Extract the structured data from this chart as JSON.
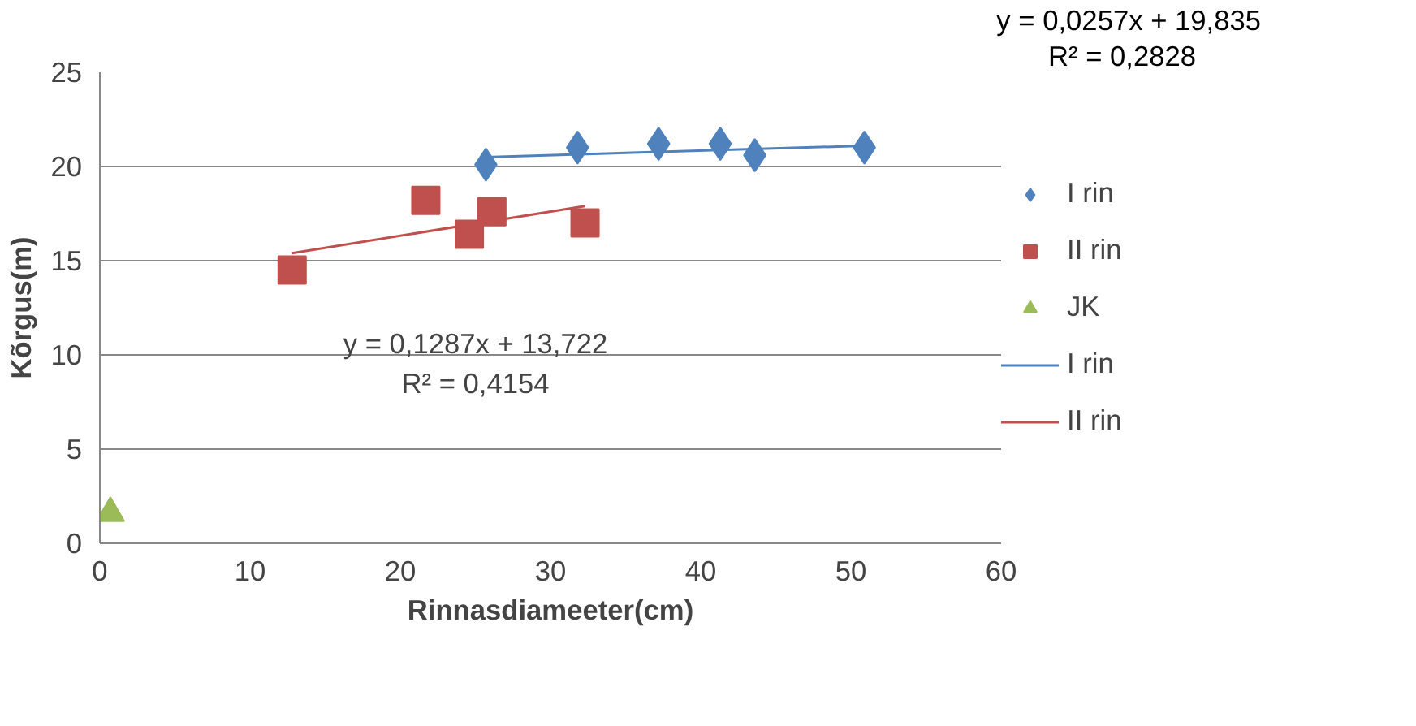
{
  "chart_data": {
    "type": "scatter",
    "xlabel": "Rinnasdiameeter(cm)",
    "ylabel": "Kõrgus(m)",
    "xlim": [
      0,
      60
    ],
    "xticks": [
      0,
      10,
      20,
      30,
      40,
      50,
      60
    ],
    "ylim": [
      0,
      25
    ],
    "yticks": [
      0,
      5,
      10,
      15,
      20,
      25
    ],
    "grid": "y",
    "legend": "right",
    "annotations": [
      "y = 0,0257x + 19,835",
      "R² = 0,2828",
      "y = 0,1287x + 13,722",
      "R² = 0,4154"
    ],
    "series": [
      {
        "name": "I rin",
        "color": "#4f81bd",
        "marker": "diamond",
        "x": [
          25.7,
          31.8,
          37.2,
          41.3,
          43.6,
          50.9
        ],
        "values": [
          20.1,
          21.0,
          21.2,
          21.2,
          20.6,
          21.0
        ]
      },
      {
        "name": "II rin",
        "color": "#c0504d",
        "marker": "square",
        "x": [
          12.8,
          21.7,
          24.6,
          26.1,
          32.3
        ],
        "values": [
          14.5,
          18.2,
          16.4,
          17.6,
          17.0
        ]
      },
      {
        "name": "JK",
        "color": "#9bbb59",
        "marker": "triangle",
        "x": [
          0.7
        ],
        "values": [
          1.6
        ]
      },
      {
        "name": "I rin",
        "type": "line",
        "color": "#4f81bd",
        "x": [
          25.7,
          50.9
        ],
        "values": [
          20.5,
          21.1
        ]
      },
      {
        "name": "II rin",
        "type": "line",
        "color": "#c0504d",
        "x": [
          12.8,
          32.3
        ],
        "values": [
          15.4,
          17.9
        ]
      }
    ]
  }
}
